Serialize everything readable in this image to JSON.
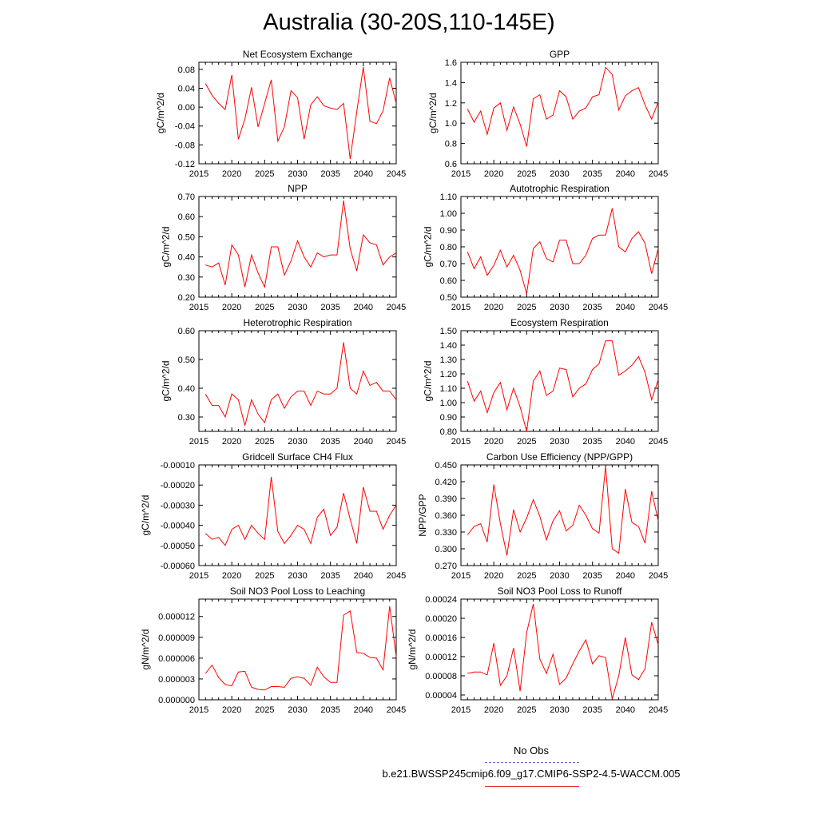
{
  "title": "Australia (30-20S,110-145E)",
  "line_color": "#ff0000",
  "obs_color": "#6a6ad8",
  "legend": {
    "obs_label": "No Obs",
    "model_label": "b.e21.BWSSP245cmip6.f09_g17.CMIP6-SSP2-4.5-WACCM.005"
  },
  "chart_data": [
    {
      "type": "line",
      "title": "Net Ecosystem Exchange",
      "ylabel": "gC/m^2/d",
      "xlim": [
        2015,
        2045
      ],
      "ylim": [
        -0.12,
        0.095
      ],
      "xticks": [
        "2015",
        "2020",
        "2025",
        "2030",
        "2035",
        "2040",
        "2045"
      ],
      "yticks": [
        "0.08",
        "0.04",
        "0.00",
        "-0.04",
        "-0.08",
        "-0.12"
      ],
      "x": [
        2016,
        2017,
        2018,
        2019,
        2020,
        2021,
        2022,
        2023,
        2024,
        2025,
        2026,
        2027,
        2028,
        2029,
        2030,
        2031,
        2032,
        2033,
        2034,
        2035,
        2036,
        2037,
        2038,
        2039,
        2040,
        2041,
        2042,
        2043,
        2044,
        2045
      ],
      "values": [
        0.05,
        0.025,
        0.008,
        -0.005,
        0.068,
        -0.068,
        -0.025,
        0.042,
        -0.042,
        0.008,
        0.058,
        -0.072,
        -0.042,
        0.035,
        0.02,
        -0.068,
        0.005,
        0.022,
        0.003,
        -0.002,
        -0.005,
        0.008,
        -0.11,
        -0.01,
        0.085,
        -0.03,
        -0.035,
        -0.008,
        0.062,
        0.008
      ]
    },
    {
      "type": "line",
      "title": "GPP",
      "ylabel": "gC/m^2/d",
      "xlim": [
        2015,
        2045
      ],
      "ylim": [
        0.6,
        1.6
      ],
      "xticks": [
        "2015",
        "2020",
        "2025",
        "2030",
        "2035",
        "2040",
        "2045"
      ],
      "yticks": [
        "1.6",
        "1.4",
        "1.2",
        "1.0",
        "0.8",
        "0.6"
      ],
      "x": [
        2016,
        2017,
        2018,
        2019,
        2020,
        2021,
        2022,
        2023,
        2024,
        2025,
        2026,
        2027,
        2028,
        2029,
        2030,
        2031,
        2032,
        2033,
        2034,
        2035,
        2036,
        2037,
        2038,
        2039,
        2040,
        2041,
        2042,
        2043,
        2044,
        2045
      ],
      "values": [
        1.14,
        1.01,
        1.12,
        0.89,
        1.15,
        1.2,
        0.93,
        1.16,
        0.99,
        0.77,
        1.24,
        1.28,
        1.04,
        1.08,
        1.32,
        1.26,
        1.04,
        1.12,
        1.15,
        1.26,
        1.28,
        1.55,
        1.48,
        1.13,
        1.27,
        1.32,
        1.35,
        1.18,
        1.04,
        1.21
      ]
    },
    {
      "type": "line",
      "title": "NPP",
      "ylabel": "gC/m^2/d",
      "xlim": [
        2015,
        2045
      ],
      "ylim": [
        0.2,
        0.7
      ],
      "xticks": [
        "2015",
        "2020",
        "2025",
        "2030",
        "2035",
        "2040",
        "2045"
      ],
      "yticks": [
        "0.70",
        "0.60",
        "0.50",
        "0.40",
        "0.30",
        "0.20"
      ],
      "x": [
        2016,
        2017,
        2018,
        2019,
        2020,
        2021,
        2022,
        2023,
        2024,
        2025,
        2026,
        2027,
        2028,
        2029,
        2030,
        2031,
        2032,
        2033,
        2034,
        2035,
        2036,
        2037,
        2038,
        2039,
        2040,
        2041,
        2042,
        2043,
        2044,
        2045
      ],
      "values": [
        0.36,
        0.35,
        0.37,
        0.26,
        0.46,
        0.41,
        0.25,
        0.41,
        0.32,
        0.25,
        0.45,
        0.45,
        0.31,
        0.38,
        0.48,
        0.4,
        0.35,
        0.42,
        0.4,
        0.41,
        0.41,
        0.68,
        0.44,
        0.33,
        0.51,
        0.47,
        0.46,
        0.36,
        0.4,
        0.42
      ]
    },
    {
      "type": "line",
      "title": "Autotrophic Respiration",
      "ylabel": "gC/m^2/d",
      "xlim": [
        2015,
        2045
      ],
      "ylim": [
        0.5,
        1.1
      ],
      "xticks": [
        "2015",
        "2020",
        "2025",
        "2030",
        "2035",
        "2040",
        "2045"
      ],
      "yticks": [
        "1.10",
        "1.00",
        "0.90",
        "0.80",
        "0.70",
        "0.60",
        "0.50"
      ],
      "x": [
        2016,
        2017,
        2018,
        2019,
        2020,
        2021,
        2022,
        2023,
        2024,
        2025,
        2026,
        2027,
        2028,
        2029,
        2030,
        2031,
        2032,
        2033,
        2034,
        2035,
        2036,
        2037,
        2038,
        2039,
        2040,
        2041,
        2042,
        2043,
        2044,
        2045
      ],
      "values": [
        0.77,
        0.67,
        0.74,
        0.63,
        0.69,
        0.78,
        0.68,
        0.75,
        0.66,
        0.52,
        0.79,
        0.83,
        0.73,
        0.71,
        0.84,
        0.84,
        0.7,
        0.7,
        0.75,
        0.85,
        0.87,
        0.87,
        1.03,
        0.8,
        0.77,
        0.85,
        0.89,
        0.82,
        0.64,
        0.79
      ]
    },
    {
      "type": "line",
      "title": "Heterotrophic Respiration",
      "ylabel": "gC/m^2/d",
      "xlim": [
        2015,
        2045
      ],
      "ylim": [
        0.25,
        0.6
      ],
      "xticks": [
        "2015",
        "2020",
        "2025",
        "2030",
        "2035",
        "2040",
        "2045"
      ],
      "yticks": [
        "0.60",
        "0.50",
        "0.40",
        "0.30"
      ],
      "x": [
        2016,
        2017,
        2018,
        2019,
        2020,
        2021,
        2022,
        2023,
        2024,
        2025,
        2026,
        2027,
        2028,
        2029,
        2030,
        2031,
        2032,
        2033,
        2034,
        2035,
        2036,
        2037,
        2038,
        2039,
        2040,
        2041,
        2042,
        2043,
        2044,
        2045
      ],
      "values": [
        0.38,
        0.34,
        0.34,
        0.3,
        0.38,
        0.36,
        0.27,
        0.36,
        0.31,
        0.28,
        0.36,
        0.38,
        0.33,
        0.37,
        0.39,
        0.39,
        0.34,
        0.39,
        0.38,
        0.38,
        0.4,
        0.56,
        0.4,
        0.38,
        0.46,
        0.41,
        0.42,
        0.39,
        0.39,
        0.36
      ]
    },
    {
      "type": "line",
      "title": "Ecosystem Respiration",
      "ylabel": "gC/m^2/d",
      "xlim": [
        2015,
        2045
      ],
      "ylim": [
        0.8,
        1.5
      ],
      "xticks": [
        "2015",
        "2020",
        "2025",
        "2030",
        "2035",
        "2040",
        "2045"
      ],
      "yticks": [
        "1.50",
        "1.40",
        "1.30",
        "1.20",
        "1.10",
        "1.00",
        "0.90",
        "0.80"
      ],
      "x": [
        2016,
        2017,
        2018,
        2019,
        2020,
        2021,
        2022,
        2023,
        2024,
        2025,
        2026,
        2027,
        2028,
        2029,
        2030,
        2031,
        2032,
        2033,
        2034,
        2035,
        2036,
        2037,
        2038,
        2039,
        2040,
        2041,
        2042,
        2043,
        2044,
        2045
      ],
      "values": [
        1.15,
        1.01,
        1.08,
        0.93,
        1.07,
        1.14,
        0.95,
        1.1,
        0.97,
        0.8,
        1.15,
        1.22,
        1.05,
        1.08,
        1.24,
        1.23,
        1.04,
        1.1,
        1.13,
        1.23,
        1.27,
        1.43,
        1.43,
        1.19,
        1.22,
        1.26,
        1.32,
        1.21,
        1.02,
        1.16
      ]
    },
    {
      "type": "line",
      "title": "Gridcell Surface CH4 Flux",
      "ylabel": "gC/m^2/d",
      "xlim": [
        2015,
        2045
      ],
      "ylim": [
        -0.0006,
        -0.0001
      ],
      "xticks": [
        "2015",
        "2020",
        "2025",
        "2030",
        "2035",
        "2040",
        "2045"
      ],
      "yticks": [
        "-0.00010",
        "-0.00020",
        "-0.00030",
        "-0.00040",
        "-0.00050",
        "-0.00060"
      ],
      "x": [
        2016,
        2017,
        2018,
        2019,
        2020,
        2021,
        2022,
        2023,
        2024,
        2025,
        2026,
        2027,
        2028,
        2029,
        2030,
        2031,
        2032,
        2033,
        2034,
        2035,
        2036,
        2037,
        2038,
        2039,
        2040,
        2041,
        2042,
        2043,
        2044,
        2045
      ],
      "values": [
        -0.00044,
        -0.00047,
        -0.00046,
        -0.0005,
        -0.00042,
        -0.0004,
        -0.00047,
        -0.0004,
        -0.00044,
        -0.00047,
        -0.00016,
        -0.00043,
        -0.00049,
        -0.00045,
        -0.0004,
        -0.00042,
        -0.00049,
        -0.00036,
        -0.00032,
        -0.00045,
        -0.00041,
        -0.00024,
        -0.00037,
        -0.00049,
        -0.00021,
        -0.00033,
        -0.00033,
        -0.00042,
        -0.00035,
        -0.0003
      ]
    },
    {
      "type": "line",
      "title": "Carbon Use Efficiency (NPP/GPP)",
      "ylabel": "NPP/GPP",
      "xlim": [
        2015,
        2045
      ],
      "ylim": [
        0.27,
        0.45
      ],
      "xticks": [
        "2015",
        "2020",
        "2025",
        "2030",
        "2035",
        "2040",
        "2045"
      ],
      "yticks": [
        "0.450",
        "0.420",
        "0.390",
        "0.360",
        "0.330",
        "0.300",
        "0.270"
      ],
      "x": [
        2016,
        2017,
        2018,
        2019,
        2020,
        2021,
        2022,
        2023,
        2024,
        2025,
        2026,
        2027,
        2028,
        2029,
        2030,
        2031,
        2032,
        2033,
        2034,
        2035,
        2036,
        2037,
        2038,
        2039,
        2040,
        2041,
        2042,
        2043,
        2044,
        2045
      ],
      "values": [
        0.325,
        0.34,
        0.345,
        0.312,
        0.415,
        0.345,
        0.288,
        0.37,
        0.33,
        0.355,
        0.388,
        0.358,
        0.316,
        0.35,
        0.368,
        0.332,
        0.342,
        0.378,
        0.36,
        0.336,
        0.328,
        0.448,
        0.3,
        0.292,
        0.407,
        0.347,
        0.34,
        0.31,
        0.403,
        0.35
      ]
    },
    {
      "type": "line",
      "title": "Soil NO3 Pool Loss to Leaching",
      "ylabel": "gN/m^2/d",
      "xlim": [
        2015,
        2045
      ],
      "ylim": [
        0,
        1.45e-05
      ],
      "xticks": [
        "2015",
        "2020",
        "2025",
        "2030",
        "2035",
        "2040",
        "2045"
      ],
      "yticks": [
        "0.000012",
        "0.000009",
        "0.000006",
        "0.000003",
        "0.000000"
      ],
      "x": [
        2016,
        2017,
        2018,
        2019,
        2020,
        2021,
        2022,
        2023,
        2024,
        2025,
        2026,
        2027,
        2028,
        2029,
        2030,
        2031,
        2032,
        2033,
        2034,
        2035,
        2036,
        2037,
        2038,
        2039,
        2040,
        2041,
        2042,
        2043,
        2044,
        2045
      ],
      "values": [
        3.8e-06,
        5e-06,
        3.2e-06,
        2.2e-06,
        2e-06,
        4e-06,
        4.1e-06,
        1.8e-06,
        1.5e-06,
        1.4e-06,
        1.9e-06,
        1.9e-06,
        1.8e-06,
        3.1e-06,
        3.3e-06,
        3.1e-06,
        2.1e-06,
        4.7e-06,
        3.3e-06,
        2.5e-06,
        2.5e-06,
        1.22e-05,
        1.28e-05,
        6.8e-06,
        6.7e-06,
        6.1e-06,
        6e-06,
        4.3e-06,
        1.35e-05,
        6.2e-06
      ]
    },
    {
      "type": "line",
      "title": "Soil NO3 Pool Loss to Runoff",
      "ylabel": "gN/m^2/d",
      "xlim": [
        2015,
        2045
      ],
      "ylim": [
        3e-05,
        0.00024
      ],
      "xticks": [
        "2015",
        "2020",
        "2025",
        "2030",
        "2035",
        "2040",
        "2045"
      ],
      "yticks": [
        "0.00024",
        "0.00020",
        "0.00016",
        "0.00012",
        "0.00008",
        "0.00004"
      ],
      "x": [
        2016,
        2017,
        2018,
        2019,
        2020,
        2021,
        2022,
        2023,
        2024,
        2025,
        2026,
        2027,
        2028,
        2029,
        2030,
        2031,
        2032,
        2033,
        2034,
        2035,
        2036,
        2037,
        2038,
        2039,
        2040,
        2041,
        2042,
        2043,
        2044,
        2045
      ],
      "values": [
        8.5e-05,
        8.8e-05,
        8.8e-05,
        8.2e-05,
        0.000148,
        6e-05,
        8e-05,
        0.000138,
        4.8e-05,
        0.00017,
        0.00023,
        0.000115,
        8.5e-05,
        0.000125,
        6.2e-05,
        7.5e-05,
        0.000105,
        0.000132,
        0.000155,
        0.000105,
        0.000122,
        0.000118,
        3.2e-05,
        8e-05,
        0.00016,
        8.2e-05,
        7.2e-05,
        9.5e-05,
        0.000192,
        0.000145
      ]
    }
  ]
}
